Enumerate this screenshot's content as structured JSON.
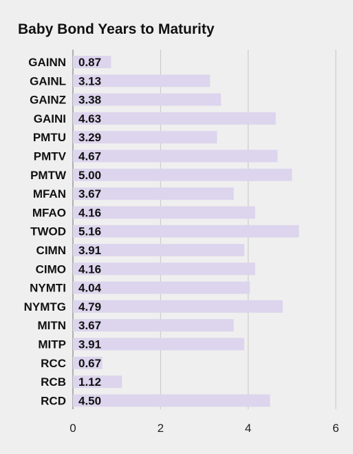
{
  "chart_data": {
    "type": "bar",
    "orientation": "horizontal",
    "title": "Baby Bond Years to Maturity",
    "xlabel": "",
    "ylabel": "",
    "categories": [
      "GAINN",
      "GAINL",
      "GAINZ",
      "GAINI",
      "PMTU",
      "PMTV",
      "PMTW",
      "MFAN",
      "MFAO",
      "TWOD",
      "CIMN",
      "CIMO",
      "NYMTI",
      "NYMTG",
      "MITN",
      "MITP",
      "RCC",
      "RCB",
      "RCD"
    ],
    "values": [
      0.87,
      3.13,
      3.38,
      4.63,
      3.29,
      4.67,
      5.0,
      3.67,
      4.16,
      5.16,
      3.91,
      4.16,
      4.04,
      4.79,
      3.67,
      3.91,
      0.67,
      1.12,
      4.5
    ],
    "value_labels": [
      "0.87",
      "3.13",
      "3.38",
      "4.63",
      "3.29",
      "4.67",
      "5.00",
      "3.67",
      "4.16",
      "5.16",
      "3.91",
      "4.16",
      "4.04",
      "4.79",
      "3.67",
      "3.91",
      "0.67",
      "1.12",
      "4.50"
    ],
    "xlim": [
      0,
      6
    ],
    "xticks": [
      0,
      2,
      4,
      6
    ],
    "xtick_labels": [
      "0",
      "2",
      "4",
      "6"
    ],
    "grid": true,
    "legend": "none",
    "colors": {
      "bar": "#dcd5ed",
      "background": "#efefef",
      "grid": "#c4c4c4",
      "text": "#111111"
    }
  }
}
